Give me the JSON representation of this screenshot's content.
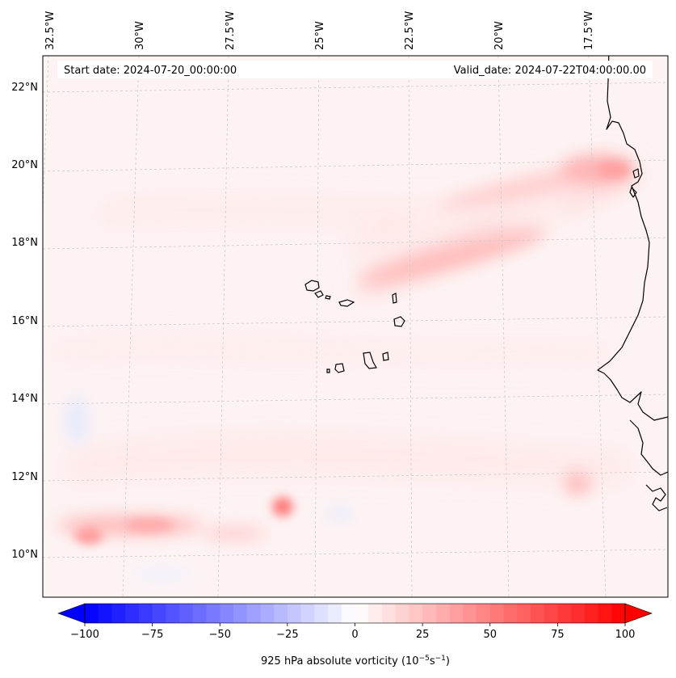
{
  "map": {
    "info_left": "Start date: 2024-07-20_00:00:00",
    "info_right": "Valid_date: 2024-07-22T04:00:00.00",
    "lon_labels": [
      "32.5°W",
      "30°W",
      "27.5°W",
      "25°W",
      "22.5°W",
      "20°W",
      "17.5°W"
    ],
    "lat_labels": [
      "22°N",
      "20°N",
      "18°N",
      "16°N",
      "14°N",
      "12°N",
      "10°N"
    ],
    "ocean_color": "#fdf3f3",
    "coastline_color": "#000000",
    "gridline_color": "#c8c8c8"
  },
  "colorbar": {
    "label_text": "925 hPa absolute vorticity (10",
    "label_exp1": "−5",
    "label_mid": "s",
    "label_exp2": "−1",
    "label_close": ")",
    "ticks": [
      "−100",
      "−75",
      "−50",
      "−25",
      "0",
      "25",
      "50",
      "75",
      "100"
    ],
    "tick_values": [
      -100,
      -75,
      -50,
      -25,
      0,
      25,
      50,
      75,
      100
    ],
    "min": -100,
    "max": 100,
    "step": 5,
    "colormap": "bwr",
    "extend": "both",
    "low_color": "#0000ff",
    "mid_color": "#ffffff",
    "high_color": "#ff0000"
  }
}
